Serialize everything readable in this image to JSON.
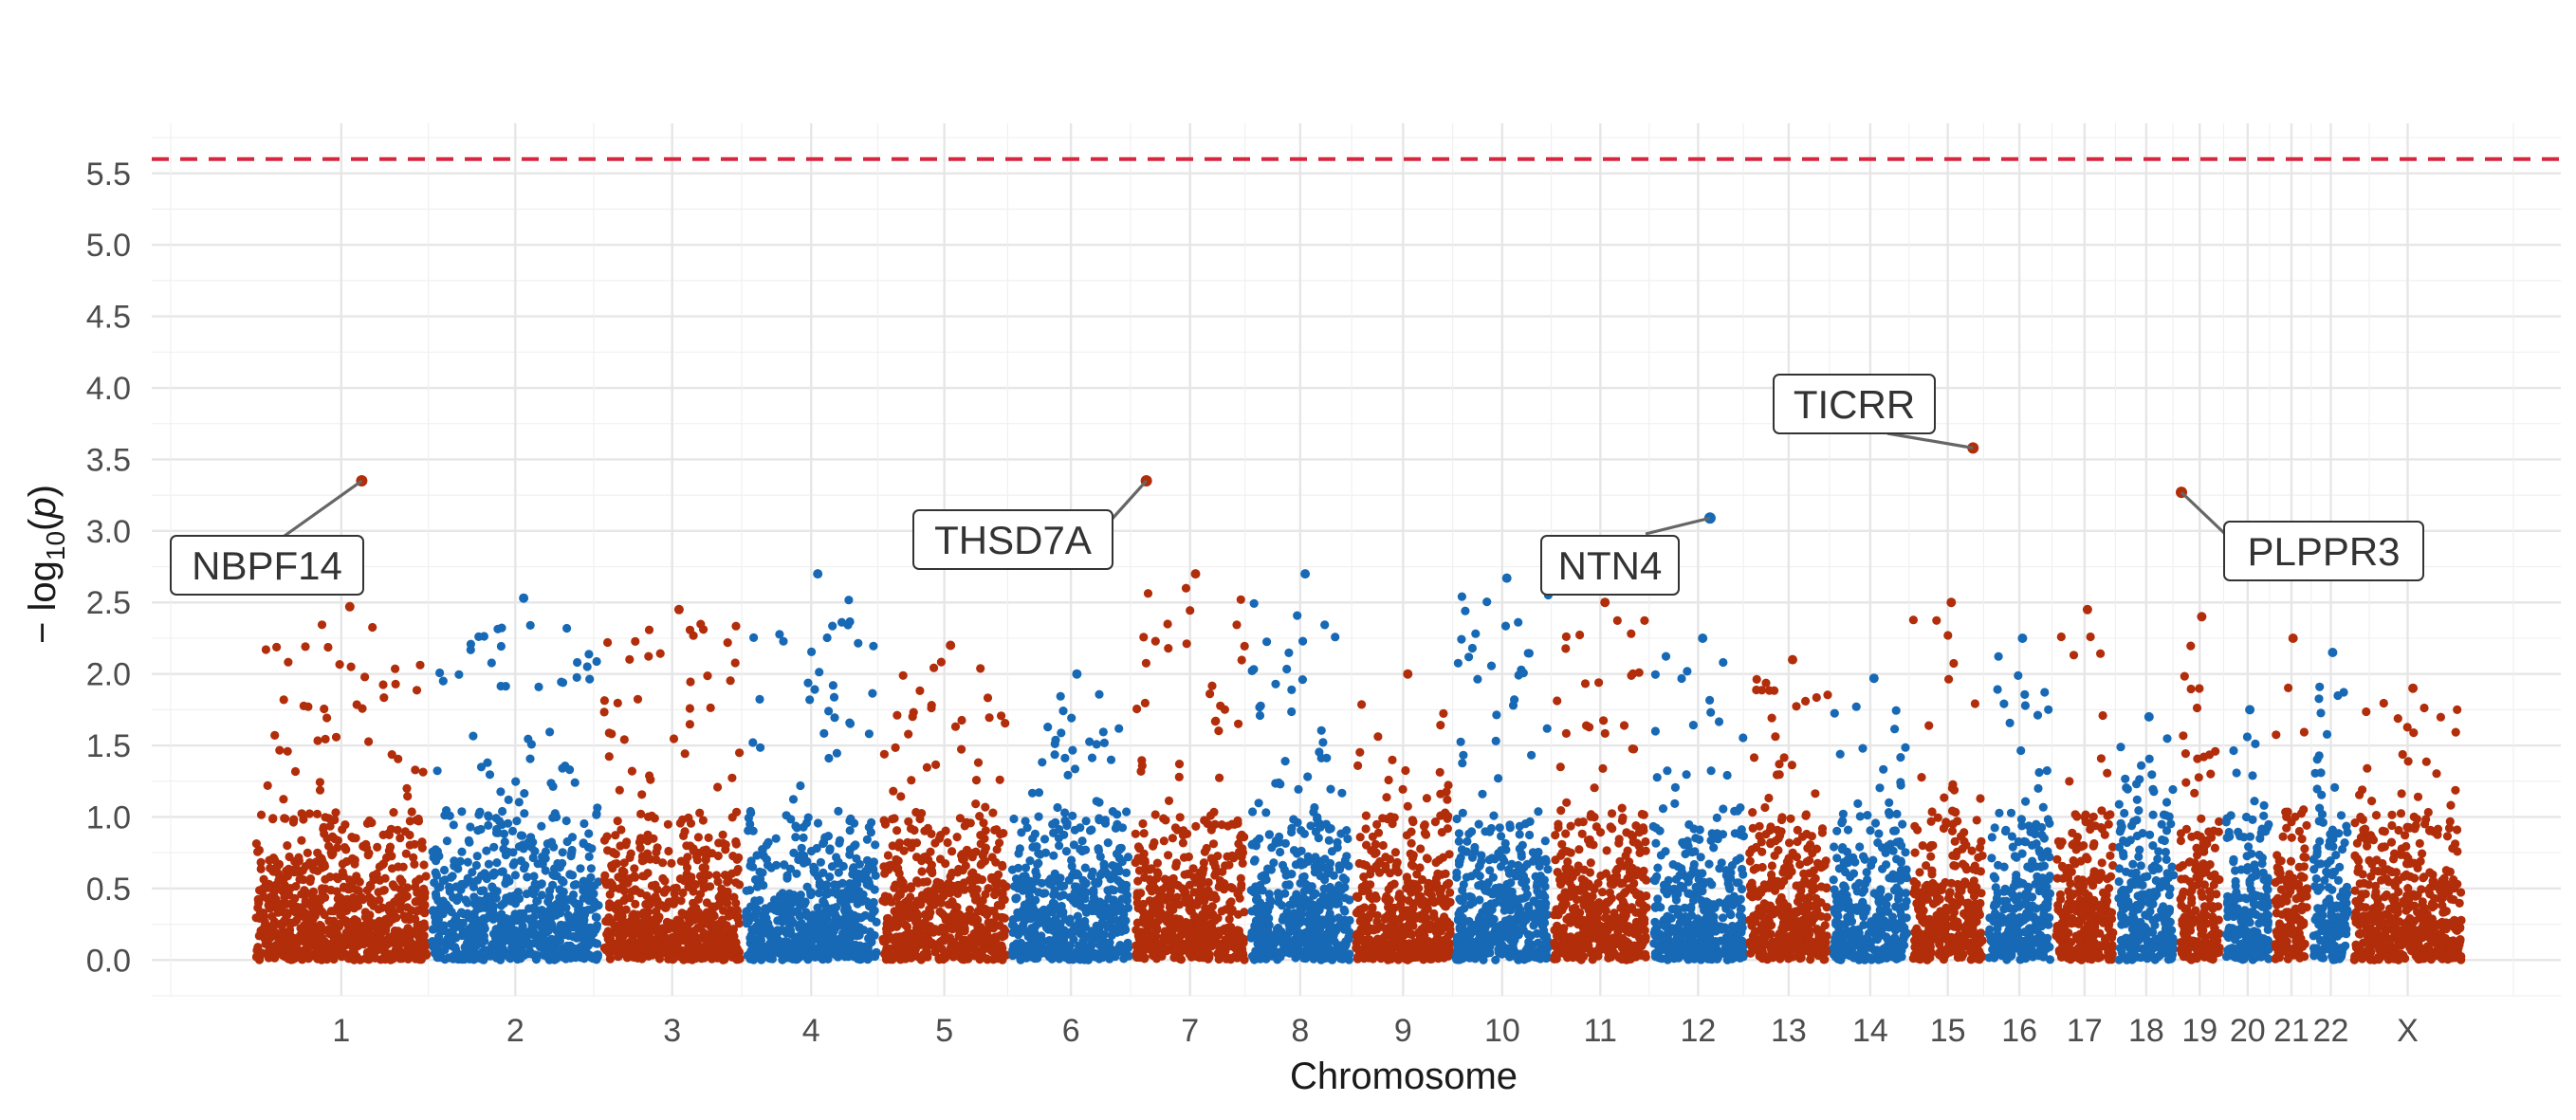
{
  "chart_data": {
    "type": "scatter",
    "subtype": "manhattan",
    "xlabel": "Chromosome",
    "ylabel_prefix": "− log",
    "ylabel_sub": "10",
    "ylabel_open": "(",
    "ylabel_var": "p",
    "ylabel_close": ")",
    "ylim": [
      -0.25,
      5.85
    ],
    "yticks": [
      "0.0",
      "0.5",
      "1.0",
      "1.5",
      "2.0",
      "2.5",
      "3.0",
      "3.5",
      "4.0",
      "4.5",
      "5.0",
      "5.5"
    ],
    "threshold": 5.6,
    "threshold_color": "#d7263d",
    "colors": {
      "odd": "#b22d0a",
      "even": "#1769b5"
    },
    "chromosomes": [
      {
        "label": "1",
        "length": 248,
        "max": 2.47
      },
      {
        "label": "2",
        "length": 242,
        "max": 2.53
      },
      {
        "label": "3",
        "length": 198,
        "max": 2.45
      },
      {
        "label": "4",
        "length": 190,
        "max": 2.7
      },
      {
        "label": "5",
        "length": 181,
        "max": 2.2
      },
      {
        "label": "6",
        "length": 171,
        "max": 2.0
      },
      {
        "label": "7",
        "length": 159,
        "max": 2.7
      },
      {
        "label": "8",
        "length": 145,
        "max": 2.7
      },
      {
        "label": "9",
        "length": 138,
        "max": 2.0
      },
      {
        "label": "10",
        "length": 134,
        "max": 2.67
      },
      {
        "label": "11",
        "length": 135,
        "max": 2.5
      },
      {
        "label": "12",
        "length": 133,
        "max": 2.25
      },
      {
        "label": "13",
        "length": 114,
        "max": 2.1
      },
      {
        "label": "14",
        "length": 107,
        "max": 1.97
      },
      {
        "label": "15",
        "length": 102,
        "max": 2.5
      },
      {
        "label": "16",
        "length": 90,
        "max": 2.25
      },
      {
        "label": "17",
        "length": 83,
        "max": 2.45
      },
      {
        "label": "18",
        "length": 80,
        "max": 1.7
      },
      {
        "label": "19",
        "length": 59,
        "max": 2.4
      },
      {
        "label": "20",
        "length": 64,
        "max": 1.75
      },
      {
        "label": "21",
        "length": 47,
        "max": 2.25
      },
      {
        "label": "22",
        "length": 51,
        "max": 2.15
      },
      {
        "label": "X",
        "length": 156,
        "max": 1.9
      }
    ],
    "annotations": [
      {
        "label": "NBPF14",
        "chrom": "1",
        "pos": 0.62,
        "y": 3.35
      },
      {
        "label": "THSD7A",
        "chrom": "7",
        "pos": 0.1,
        "y": 3.35
      },
      {
        "label": "NTN4",
        "chrom": "12",
        "pos": 0.63,
        "y": 3.09
      },
      {
        "label": "TICRR",
        "chrom": "15",
        "pos": 0.86,
        "y": 3.58
      },
      {
        "label": "PLPPR3",
        "chrom": "19",
        "pos": 0.05,
        "y": 3.27
      }
    ]
  }
}
